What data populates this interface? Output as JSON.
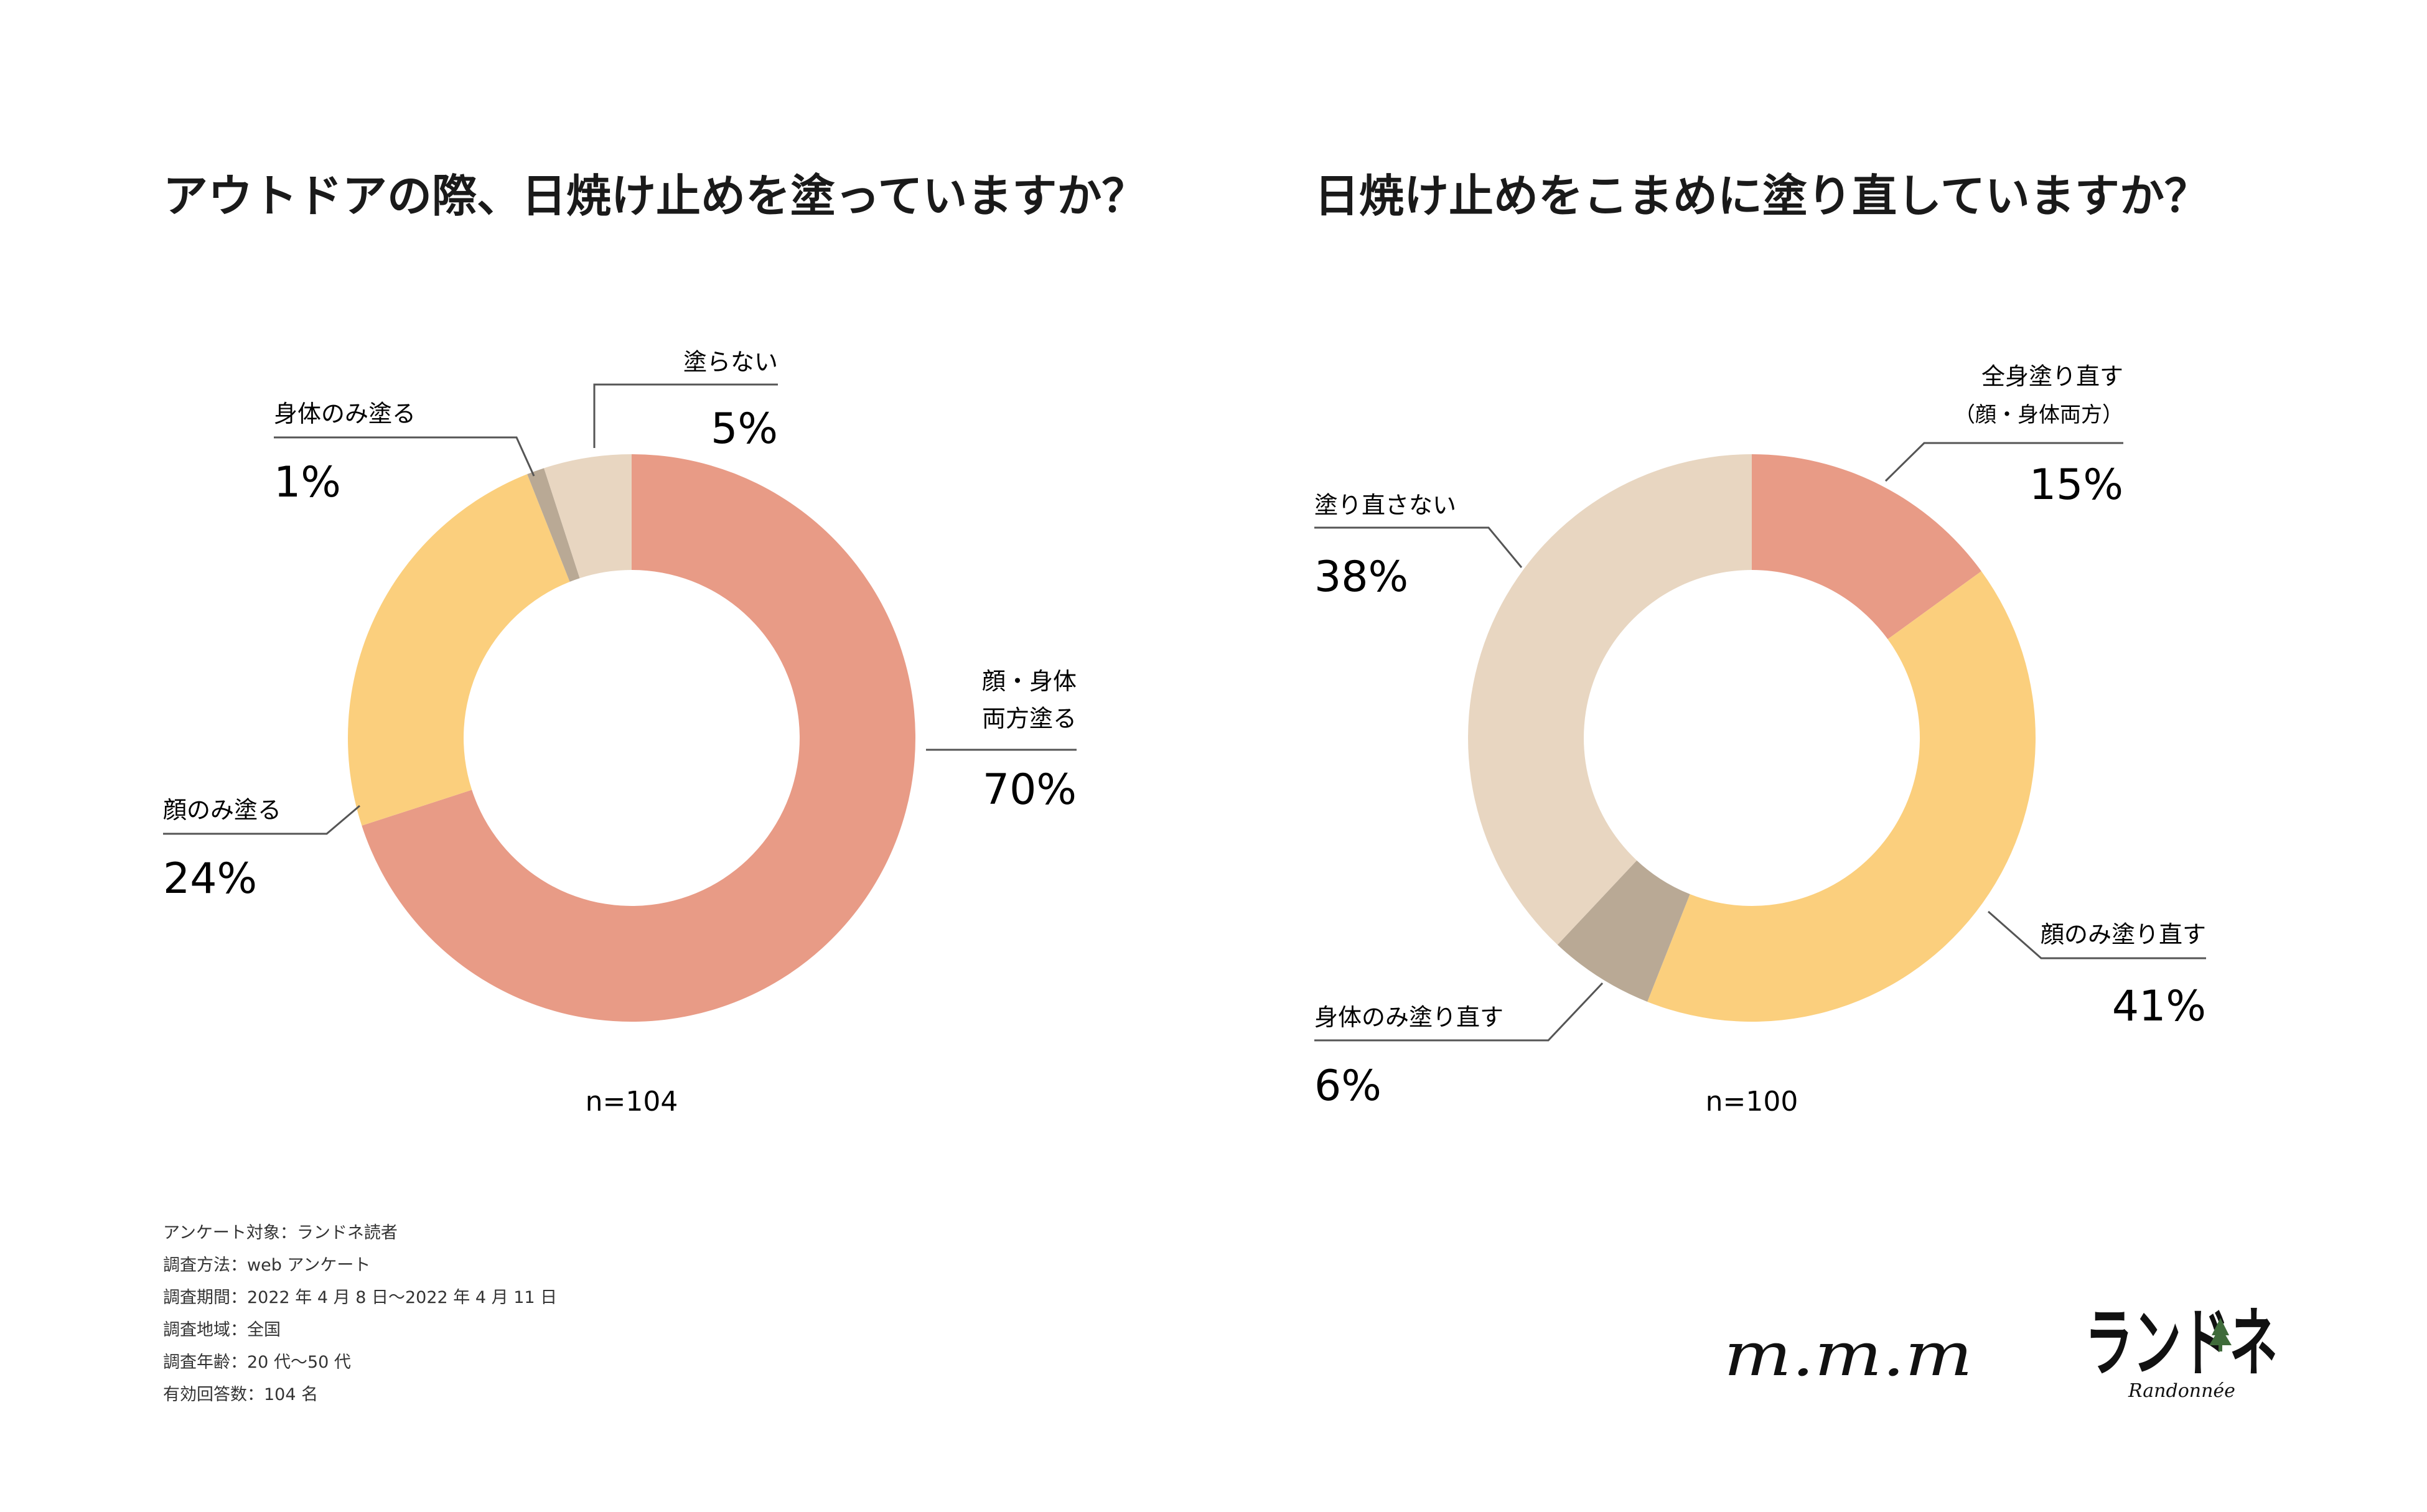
{
  "charts": [
    {
      "title": "アウトドアの際、日焼け止めを塗っていますか？",
      "sample_label": "n=104"
    },
    {
      "title": "日焼け止めをこまめに塗り直していますか？",
      "sample_label": "n=100"
    }
  ],
  "chart_data": [
    {
      "type": "pie",
      "donut": true,
      "title": "アウトドアの際、日焼け止めを塗っていますか？",
      "categories": [
        "顔・身体両方塗る",
        "顔のみ塗る",
        "身体のみ塗る",
        "塗らない"
      ],
      "label_lines": [
        [
          "顔・身体",
          "両方塗る"
        ],
        [
          "顔のみ塗る"
        ],
        [
          "身体のみ塗る"
        ],
        [
          "塗らない"
        ]
      ],
      "values": [
        70,
        24,
        1,
        5
      ],
      "value_labels": [
        "70%",
        "24%",
        "1%",
        "5%"
      ],
      "colors": [
        "#e89b86",
        "#fbcf7d",
        "#b9a995",
        "#e8d6c1"
      ],
      "n": "n=104"
    },
    {
      "type": "pie",
      "donut": true,
      "title": "日焼け止めをこまめに塗り直していますか？",
      "categories": [
        "全身塗り直す（顔・身体両方）",
        "顔のみ塗り直す",
        "身体のみ塗り直す",
        "塗り直さない"
      ],
      "label_lines": [
        [
          "全身塗り直す",
          "（顔・身体両方）"
        ],
        [
          "顔のみ塗り直す"
        ],
        [
          "身体のみ塗り直す"
        ],
        [
          "塗り直さない"
        ]
      ],
      "values": [
        15,
        41,
        6,
        38
      ],
      "value_labels": [
        "15%",
        "41%",
        "6%",
        "38%"
      ],
      "colors": [
        "#e89b86",
        "#fbcf7d",
        "#b9a995",
        "#e8d6c1"
      ],
      "n": "n=100"
    }
  ],
  "survey_notes": [
    "アンケート対象：ランドネ読者",
    "調査方法：web アンケート",
    "調査期間：2022 年 4 月 8 日〜2022 年 4 月 11 日",
    "調査地域：全国",
    "調査年齢：20 代〜50 代",
    "有効回答数：104 名"
  ],
  "logos": {
    "left": "m.m.m",
    "right": "ランドネ",
    "right_sub": "Randonnée",
    "right_icon": "tree-icon"
  }
}
